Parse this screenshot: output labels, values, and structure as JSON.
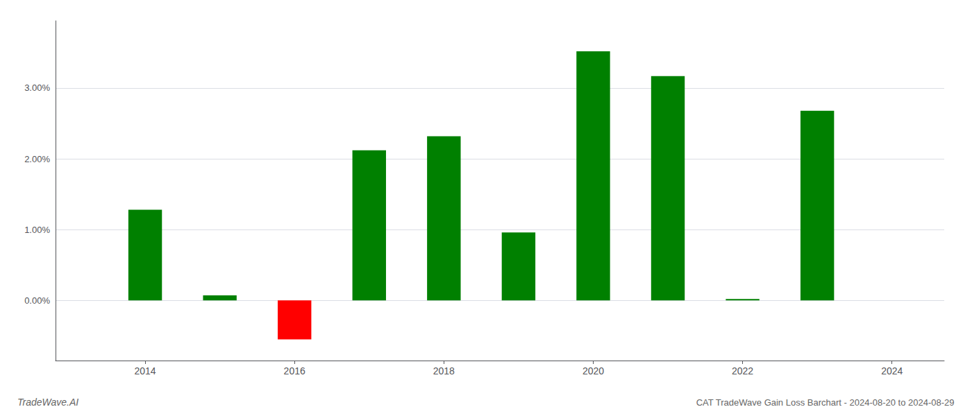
{
  "chart_data": {
    "type": "bar",
    "title": "CAT TradeWave Gain Loss Barchart - 2024-08-20 to 2024-08-29",
    "annotations": [
      {
        "text": "TradeWave.AI"
      }
    ],
    "x": [
      2014,
      2015,
      2016,
      2017,
      2018,
      2019,
      2020,
      2021,
      2022,
      2023
    ],
    "values": [
      0.0128,
      0.0007,
      -0.0055,
      0.0212,
      0.0232,
      0.0096,
      0.0352,
      0.0317,
      0.0002,
      0.0268
    ],
    "colors": [
      "#008000",
      "#008000",
      "#ff0000",
      "#008000",
      "#008000",
      "#008000",
      "#008000",
      "#008000",
      "#008000",
      "#008000"
    ],
    "xlim": [
      2012.8,
      2024.7
    ],
    "xticks": [
      2014,
      2016,
      2018,
      2020,
      2022,
      2024
    ],
    "ylim": [
      -0.0085,
      0.0395
    ],
    "yticks": [
      {
        "value": 0,
        "label": "0.00%"
      },
      {
        "value": 0.01,
        "label": "1.00%"
      },
      {
        "value": 0.02,
        "label": "2.00%"
      },
      {
        "value": 0.03,
        "label": "3.00%"
      }
    ],
    "grid": true
  }
}
